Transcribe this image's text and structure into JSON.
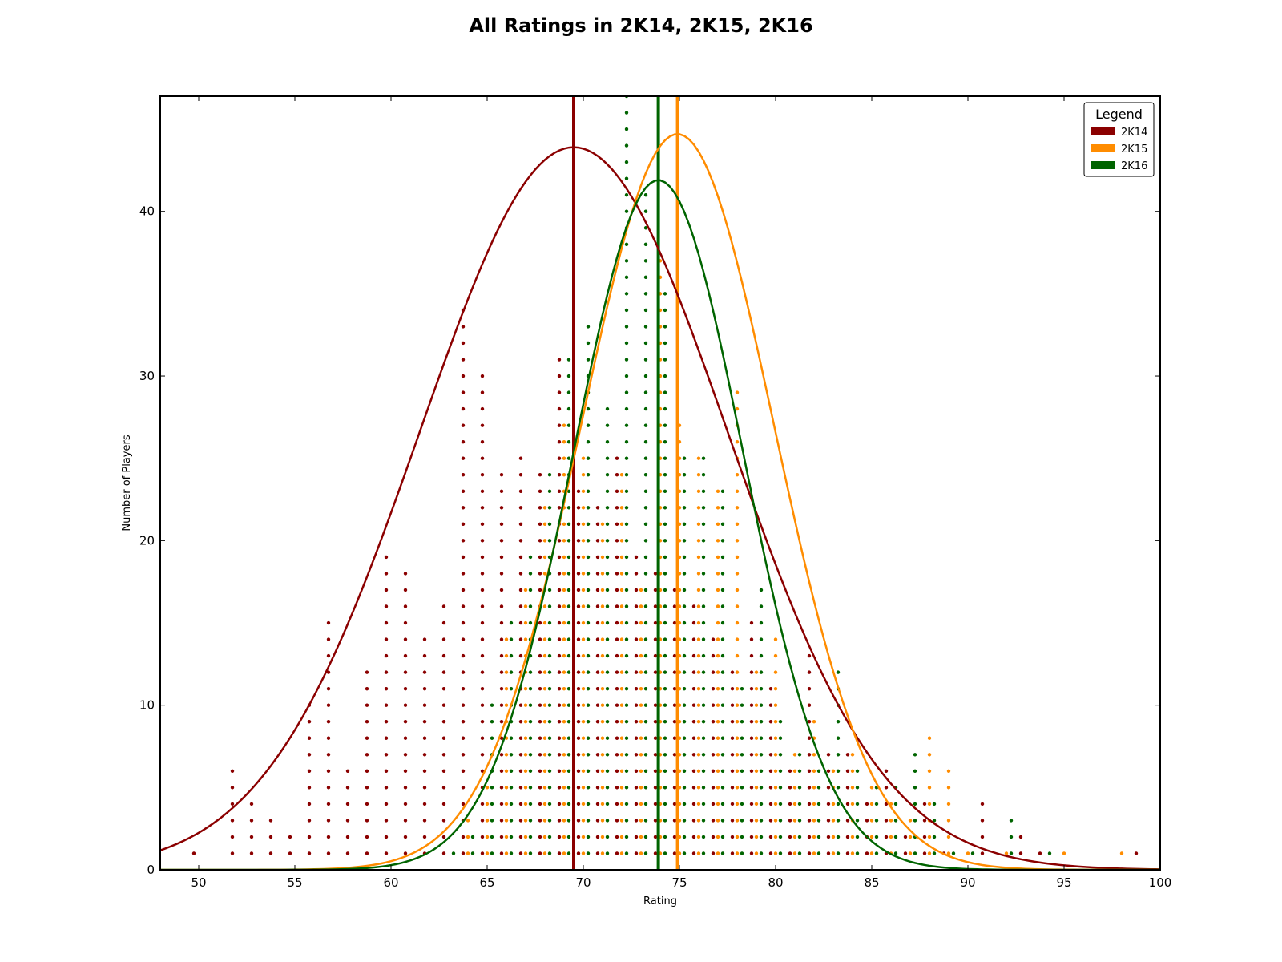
{
  "chart_data": {
    "type": "scatter",
    "title": "All Ratings in 2K14, 2K15, 2K16",
    "xlabel": "Rating",
    "ylabel": "Number of Players",
    "xlim": [
      48,
      100
    ],
    "ylim": [
      0,
      47
    ],
    "xticks": [
      50,
      55,
      60,
      65,
      70,
      75,
      80,
      85,
      90,
      95,
      100
    ],
    "yticks": [
      0,
      10,
      20,
      30,
      40
    ],
    "grid": false,
    "legend": {
      "title": "Legend",
      "position": "top-right"
    },
    "series": [
      {
        "name": "2K14",
        "color": "#8b0000",
        "mean": 69.5,
        "curve": {
          "peak": 43.9,
          "mu": 69.5,
          "sigma": 8.0
        },
        "counts": [
          [
            50,
            1
          ],
          [
            52,
            6
          ],
          [
            53,
            4
          ],
          [
            54,
            3
          ],
          [
            55,
            2
          ],
          [
            56,
            10
          ],
          [
            57,
            15
          ],
          [
            58,
            6
          ],
          [
            59,
            12
          ],
          [
            60,
            19
          ],
          [
            61,
            18
          ],
          [
            62,
            14
          ],
          [
            63,
            16
          ],
          [
            64,
            34
          ],
          [
            65,
            30
          ],
          [
            66,
            24
          ],
          [
            67,
            25
          ],
          [
            68,
            24
          ],
          [
            69,
            31
          ],
          [
            70,
            23
          ],
          [
            71,
            22
          ],
          [
            72,
            25
          ],
          [
            73,
            19
          ],
          [
            74,
            18
          ],
          [
            75,
            17
          ],
          [
            76,
            16
          ],
          [
            77,
            14
          ],
          [
            78,
            12
          ],
          [
            79,
            15
          ],
          [
            80,
            11
          ],
          [
            81,
            6
          ],
          [
            82,
            13
          ],
          [
            83,
            7
          ],
          [
            84,
            7
          ],
          [
            85,
            4
          ],
          [
            86,
            6
          ],
          [
            87,
            2
          ],
          [
            88,
            4
          ],
          [
            89,
            1
          ],
          [
            91,
            4
          ],
          [
            93,
            2
          ],
          [
            94,
            1
          ],
          [
            99,
            1
          ]
        ]
      },
      {
        "name": "2K15",
        "color": "#ff8c00",
        "mean": 74.9,
        "curve": {
          "peak": 44.7,
          "mu": 74.9,
          "sigma": 5.0
        },
        "counts": [
          [
            64,
            3
          ],
          [
            65,
            5
          ],
          [
            66,
            14
          ],
          [
            67,
            17
          ],
          [
            68,
            22
          ],
          [
            69,
            27
          ],
          [
            70,
            25
          ],
          [
            71,
            21
          ],
          [
            72,
            24
          ],
          [
            73,
            17
          ],
          [
            74,
            37
          ],
          [
            75,
            27
          ],
          [
            76,
            25
          ],
          [
            77,
            23
          ],
          [
            78,
            29
          ],
          [
            79,
            12
          ],
          [
            80,
            14
          ],
          [
            81,
            7
          ],
          [
            82,
            9
          ],
          [
            83,
            6
          ],
          [
            84,
            7
          ],
          [
            85,
            5
          ],
          [
            86,
            4
          ],
          [
            87,
            3
          ],
          [
            88,
            8
          ],
          [
            89,
            6
          ],
          [
            90,
            1
          ],
          [
            92,
            1
          ],
          [
            95,
            1
          ],
          [
            98,
            1
          ]
        ]
      },
      {
        "name": "2K16",
        "color": "#006400",
        "mean": 73.9,
        "curve": {
          "peak": 41.9,
          "mu": 73.9,
          "sigma": 4.4
        },
        "counts": [
          [
            63,
            1
          ],
          [
            64,
            2
          ],
          [
            65,
            10
          ],
          [
            66,
            15
          ],
          [
            67,
            19
          ],
          [
            68,
            24
          ],
          [
            69,
            31
          ],
          [
            70,
            33
          ],
          [
            71,
            28
          ],
          [
            72,
            47
          ],
          [
            73,
            41
          ],
          [
            74,
            35
          ],
          [
            75,
            25
          ],
          [
            76,
            25
          ],
          [
            77,
            23
          ],
          [
            78,
            11
          ],
          [
            79,
            17
          ],
          [
            80,
            9
          ],
          [
            81,
            7
          ],
          [
            82,
            6
          ],
          [
            83,
            12
          ],
          [
            84,
            6
          ],
          [
            85,
            5
          ],
          [
            86,
            5
          ],
          [
            87,
            7
          ],
          [
            88,
            4
          ],
          [
            89,
            1
          ],
          [
            90,
            1
          ],
          [
            92,
            3
          ],
          [
            94,
            1
          ]
        ]
      }
    ]
  }
}
